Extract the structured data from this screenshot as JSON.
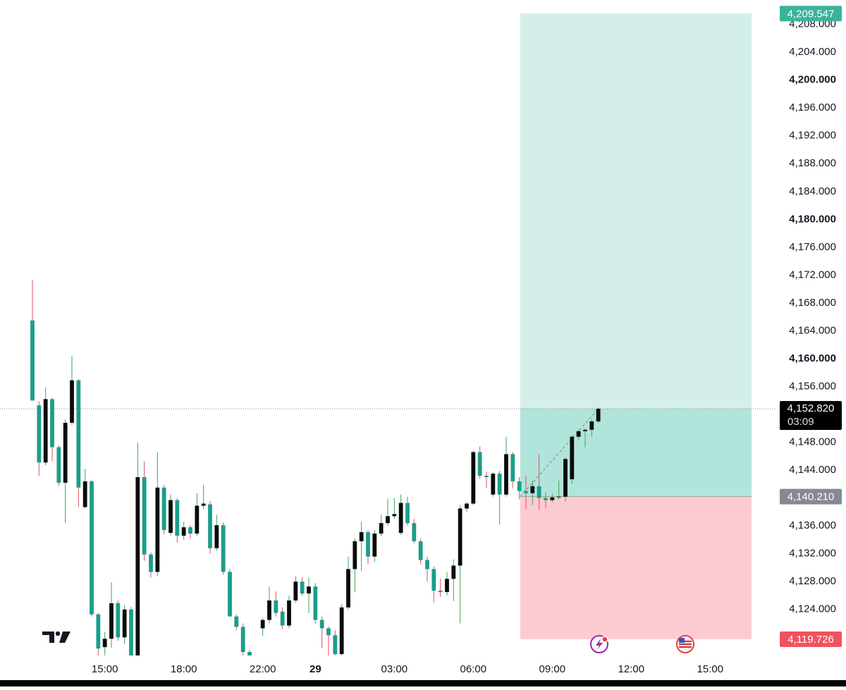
{
  "chart_data": {
    "type": "candlestick",
    "up_color": "#0b0b0b",
    "down_color": "#1a9e8a",
    "up_wick": "#3aa856",
    "down_wick": "#e04f63",
    "ylim": [
      4117.4,
      4211.5
    ],
    "xlim": [
      -4.93,
      112.93
    ],
    "yticks": [
      {
        "value": 4124,
        "label": "4,124.000"
      },
      {
        "value": 4128,
        "label": "4,128.000"
      },
      {
        "value": 4132,
        "label": "4,132.000"
      },
      {
        "value": 4136,
        "label": "4,136.000"
      },
      {
        "value": 4144,
        "label": "4,144.000"
      },
      {
        "value": 4148,
        "label": "4,148.000"
      },
      {
        "value": 4156,
        "label": "4,156.000"
      },
      {
        "value": 4160,
        "label": "4,160.000"
      },
      {
        "value": 4164,
        "label": "4,164.000"
      },
      {
        "value": 4168,
        "label": "4,168.000"
      },
      {
        "value": 4172,
        "label": "4,172.000"
      },
      {
        "value": 4176,
        "label": "4,176.000"
      },
      {
        "value": 4180,
        "label": "4,180.000"
      },
      {
        "value": 4184,
        "label": "4,184.000"
      },
      {
        "value": 4188,
        "label": "4,188.000"
      },
      {
        "value": 4192,
        "label": "4,192.000"
      },
      {
        "value": 4196,
        "label": "4,196.000"
      },
      {
        "value": 4200,
        "label": "4,200.000"
      },
      {
        "value": 4204,
        "label": "4,204.000"
      },
      {
        "value": 4208,
        "label": "4,208.000"
      }
    ],
    "xticks": [
      {
        "value": 11,
        "label": "15:00"
      },
      {
        "value": 23,
        "label": "18:00"
      },
      {
        "value": 35,
        "label": "22:00"
      },
      {
        "value": 43,
        "label": "29"
      },
      {
        "value": 55,
        "label": "03:00"
      },
      {
        "value": 67,
        "label": "06:00"
      },
      {
        "value": 79,
        "label": "09:00"
      },
      {
        "value": 91,
        "label": "12:00"
      },
      {
        "value": 103,
        "label": "15:00"
      }
    ],
    "x": [
      0,
      1,
      2,
      3,
      4,
      5,
      6,
      7,
      8,
      9,
      10,
      11,
      12,
      13,
      14,
      15,
      16,
      17,
      18,
      19,
      20,
      21,
      22,
      23,
      24,
      25,
      26,
      27,
      28,
      29,
      30,
      31,
      32,
      33,
      35,
      36,
      37,
      38,
      39,
      40,
      41,
      42,
      43,
      44,
      45,
      46,
      47,
      48,
      49,
      50,
      51,
      52,
      53,
      54,
      55,
      56,
      57,
      58,
      59,
      60,
      61,
      62,
      63,
      64,
      65,
      66,
      67,
      68,
      69,
      70,
      71,
      72,
      73,
      74,
      75,
      76,
      77,
      78,
      79,
      80,
      81,
      82,
      83,
      84,
      85,
      86
    ],
    "open": [
      4165.5,
      4153.3,
      4145.1,
      4154.2,
      4147.3,
      4142.2,
      4150.8,
      4156.9,
      4138.7,
      4142.4,
      4123.3,
      4118.6,
      4119.8,
      4124.9,
      4120.0,
      4124.0,
      4117.4,
      4143.0,
      4131.9,
      4129.4,
      4141.5,
      4135.0,
      4139.7,
      4134.6,
      4135.8,
      4134.9,
      4138.9,
      4139.1,
      4132.8,
      4136.1,
      4129.4,
      4123.0,
      4121.5,
      4117.9,
      4121.3,
      4122.5,
      4125.3,
      4123.7,
      4121.7,
      4125.3,
      4128.0,
      4126.3,
      4127.3,
      4122.5,
      4121.3,
      4120.3,
      4117.6,
      4124.3,
      4129.8,
      4133.8,
      4135.1,
      4131.6,
      4134.9,
      4136.4,
      4137.4,
      4135.0,
      4139.3,
      4136.4,
      4133.8,
      4131.1,
      4129.8,
      4126.7,
      4126.5,
      4128.4,
      4130.3,
      4138.5,
      4139.2,
      4146.6,
      4143.2,
      4140.5,
      4143.5,
      4140.5,
      4146.3,
      4142.4,
      4141.0,
      4140.7,
      4141.7,
      4140.0,
      4139.7,
      4140.1,
      4140.2,
      4142.7,
      4148.8,
      4149.6,
      4149.8,
      4151.0
    ],
    "high": [
      4171.3,
      4153.9,
      4155.9,
      4154.4,
      4147.6,
      4151.3,
      4160.4,
      4157.1,
      4144.2,
      4142.6,
      4123.5,
      4120.8,
      4127.9,
      4125.3,
      4124.6,
      4124.4,
      4148.0,
      4145.3,
      4132.2,
      4146.6,
      4141.9,
      4140.5,
      4140.0,
      4136.6,
      4136.1,
      4140.7,
      4141.9,
      4139.6,
      4137.6,
      4136.5,
      4129.8,
      4123.3,
      4122.0,
      4118.2,
      4122.8,
      4127.3,
      4126.6,
      4124.3,
      4126.0,
      4128.8,
      4128.6,
      4128.6,
      4127.8,
      4123.0,
      4121.6,
      4121.0,
      4124.8,
      4131.6,
      4134.2,
      4136.6,
      4135.4,
      4135.4,
      4137.6,
      4139.9,
      4140.0,
      4140.5,
      4140.2,
      4137.0,
      4134.2,
      4131.6,
      4130.2,
      4128.4,
      4129.4,
      4131.2,
      4139.0,
      4139.4,
      4146.8,
      4147.4,
      4143.8,
      4143.7,
      4143.9,
      4148.8,
      4146.6,
      4143.0,
      4143.2,
      4142.5,
      4146.3,
      4140.8,
      4140.6,
      4142.5,
      4145.9,
      4149.0,
      4149.8,
      4150.0,
      4151.3,
      4153.0
    ],
    "low": [
      4154.0,
      4143.2,
      4144.7,
      4145.3,
      4141.7,
      4136.4,
      4150.5,
      4138.7,
      4138.5,
      4123.0,
      4117.4,
      4117.4,
      4118.5,
      4119.5,
      4119.0,
      4117.4,
      4117.4,
      4131.0,
      4128.6,
      4128.8,
      4134.8,
      4134.6,
      4133.6,
      4134.0,
      4134.2,
      4134.6,
      4138.4,
      4132.0,
      4132.4,
      4129.0,
      4123.0,
      4121.0,
      4117.4,
      4117.4,
      4120.2,
      4122.0,
      4123.0,
      4121.2,
      4121.3,
      4125.0,
      4126.0,
      4123.5,
      4122.0,
      4118.5,
      4117.4,
      4117.4,
      4117.4,
      4124.0,
      4126.5,
      4129.5,
      4130.5,
      4130.8,
      4134.5,
      4136.0,
      4137.0,
      4134.7,
      4136.0,
      4133.5,
      4130.5,
      4128.0,
      4125.0,
      4125.8,
      4126.0,
      4125.2,
      4122.0,
      4138.0,
      4139.0,
      4142.8,
      4141.4,
      4140.2,
      4136.2,
      4140.2,
      4141.5,
      4139.8,
      4138.4,
      4139.0,
      4138.3,
      4138.5,
      4139.4,
      4139.8,
      4139.5,
      4142.0,
      4148.3,
      4147.3,
      4148.8,
      4150.8
    ],
    "close": [
      4154.0,
      4145.1,
      4154.2,
      4147.3,
      4142.2,
      4150.8,
      4156.9,
      4141.5,
      4142.4,
      4123.3,
      4118.4,
      4119.8,
      4124.9,
      4120.0,
      4124.0,
      4117.4,
      4143.0,
      4131.9,
      4129.4,
      4141.5,
      4135.4,
      4139.7,
      4134.6,
      4135.8,
      4134.9,
      4138.9,
      4139.2,
      4132.8,
      4136.1,
      4129.4,
      4123.0,
      4121.5,
      4117.9,
      4117.4,
      4122.5,
      4125.3,
      4123.5,
      4121.7,
      4125.3,
      4128.0,
      4126.3,
      4127.3,
      4122.5,
      4121.3,
      4120.3,
      4117.6,
      4124.3,
      4129.8,
      4133.8,
      4135.1,
      4131.6,
      4134.9,
      4136.4,
      4137.4,
      4137.7,
      4139.3,
      4136.4,
      4133.8,
      4131.1,
      4129.8,
      4126.7,
      4126.5,
      4128.4,
      4130.3,
      4138.5,
      4139.2,
      4146.6,
      4143.2,
      4143.0,
      4143.5,
      4140.5,
      4146.3,
      4142.4,
      4141.0,
      4140.7,
      4141.7,
      4140.0,
      4139.7,
      4140.1,
      4140.2,
      4145.6,
      4148.8,
      4149.6,
      4149.8,
      4151.0,
      4152.82
    ],
    "position": {
      "x_start": 74.14,
      "x_end": 109.29,
      "target_color": "#d4efea",
      "active_color": "#b1e5dc",
      "stop_color": "#fccbd2",
      "target": {
        "value": 4209.547,
        "label": "4,209.547"
      },
      "entry": {
        "value": 4140.21,
        "label": "4,140.210"
      },
      "stop": {
        "value": 4119.726,
        "label": "4,119.726"
      }
    },
    "last_price": {
      "value": 4152.82,
      "label": "4,152.820",
      "countdown": "03:09"
    }
  }
}
